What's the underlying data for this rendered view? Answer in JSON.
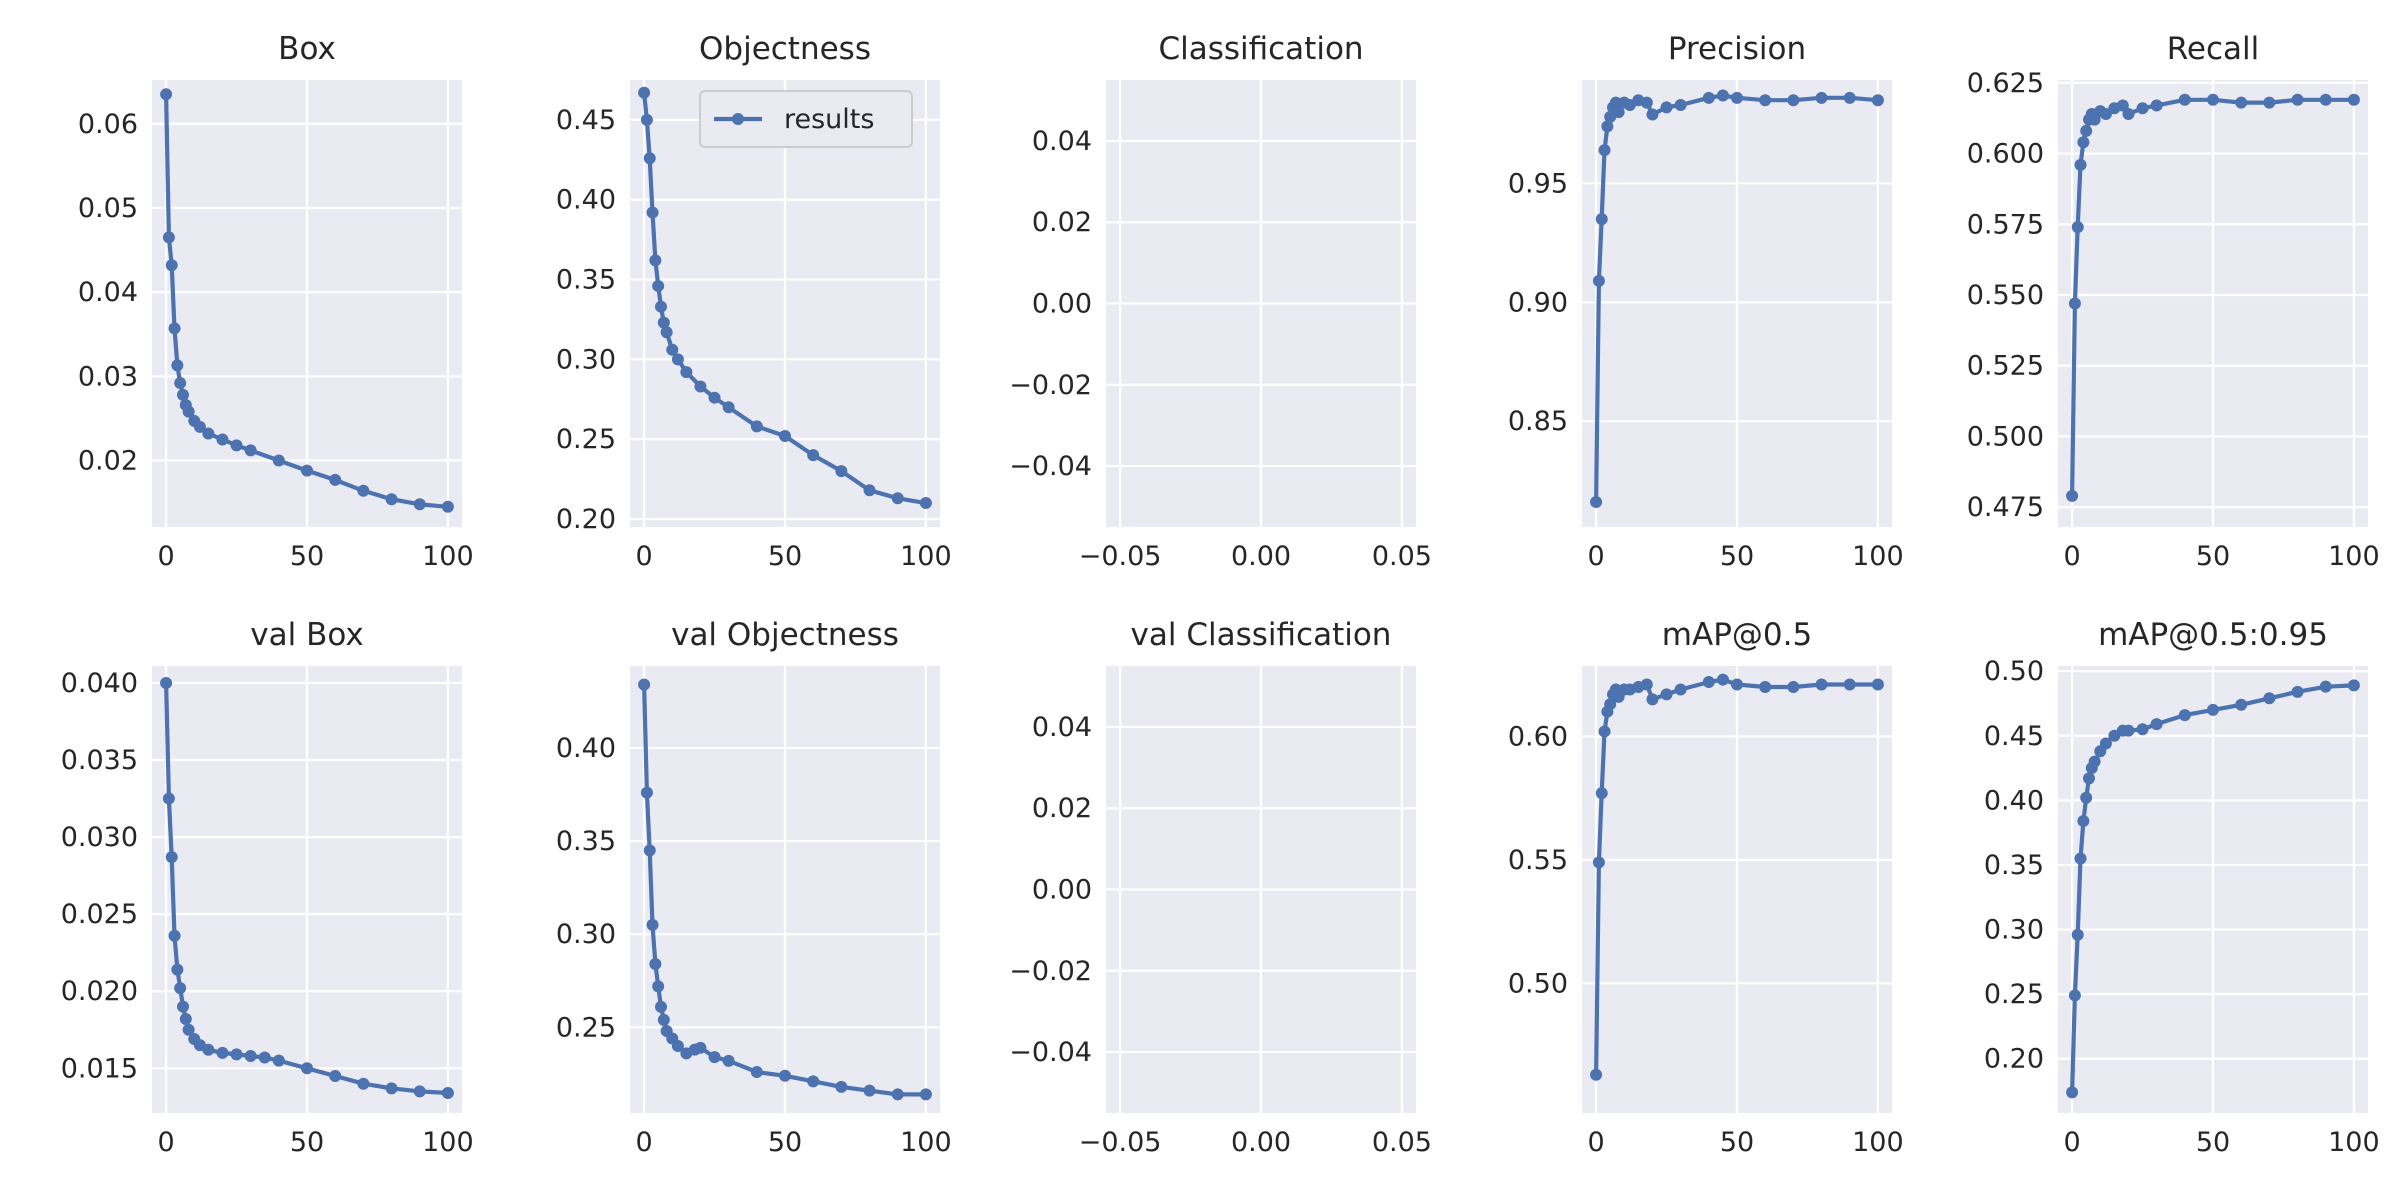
{
  "chart_data": [
    {
      "type": "line",
      "title": "Box",
      "xlim": [
        -5,
        105
      ],
      "ylim": [
        0.0121,
        0.0652
      ],
      "xticks": [
        0,
        50,
        100
      ],
      "xtick_labels": [
        "0",
        "50",
        "100"
      ],
      "yticks": [
        0.02,
        0.03,
        0.04,
        0.05,
        0.06
      ],
      "ytick_labels": [
        "0.02",
        "0.03",
        "0.04",
        "0.05",
        "0.06"
      ],
      "grid": true,
      "series": [
        {
          "name": "results",
          "x": [
            0,
            1,
            2,
            3,
            4,
            5,
            6,
            7,
            8,
            10,
            12,
            15,
            20,
            25,
            30,
            40,
            50,
            60,
            70,
            80,
            90,
            100
          ],
          "y": [
            0.0635,
            0.0465,
            0.0432,
            0.0357,
            0.0313,
            0.0292,
            0.0278,
            0.0266,
            0.0258,
            0.0247,
            0.024,
            0.0232,
            0.0225,
            0.0218,
            0.0212,
            0.02,
            0.0188,
            0.0177,
            0.0164,
            0.0154,
            0.0148,
            0.0145
          ]
        }
      ]
    },
    {
      "type": "line",
      "title": "Objectness",
      "xlim": [
        -5,
        105
      ],
      "ylim": [
        0.195,
        0.475
      ],
      "xticks": [
        0,
        50,
        100
      ],
      "xtick_labels": [
        "0",
        "50",
        "100"
      ],
      "yticks": [
        0.2,
        0.25,
        0.3,
        0.35,
        0.4,
        0.45
      ],
      "ytick_labels": [
        "0.20",
        "0.25",
        "0.30",
        "0.35",
        "0.40",
        "0.45"
      ],
      "grid": true,
      "legend": {
        "position": "top-right",
        "entries": [
          "results"
        ]
      },
      "series": [
        {
          "name": "results",
          "x": [
            0,
            1,
            2,
            3,
            4,
            5,
            6,
            7,
            8,
            10,
            12,
            15,
            20,
            25,
            30,
            40,
            50,
            60,
            70,
            80,
            90,
            100
          ],
          "y": [
            0.467,
            0.45,
            0.426,
            0.392,
            0.362,
            0.346,
            0.333,
            0.323,
            0.317,
            0.306,
            0.3,
            0.292,
            0.283,
            0.276,
            0.27,
            0.258,
            0.252,
            0.24,
            0.23,
            0.218,
            0.213,
            0.21
          ]
        }
      ]
    },
    {
      "type": "line",
      "title": "Classification",
      "xlim": [
        -0.055,
        0.055
      ],
      "ylim": [
        -0.055,
        0.055
      ],
      "xticks": [
        -0.05,
        0.0,
        0.05
      ],
      "xtick_labels": [
        "−0.05",
        "0.00",
        "0.05"
      ],
      "yticks": [
        -0.04,
        -0.02,
        0.0,
        0.02,
        0.04
      ],
      "ytick_labels": [
        "−0.04",
        "−0.02",
        "0.00",
        "0.02",
        "0.04"
      ],
      "grid": true,
      "series": [
        {
          "name": "results",
          "x": [],
          "y": []
        }
      ]
    },
    {
      "type": "line",
      "title": "Precision",
      "xlim": [
        -5,
        105
      ],
      "ylim": [
        0.8055,
        0.9935
      ],
      "xticks": [
        0,
        50,
        100
      ],
      "xtick_labels": [
        "0",
        "50",
        "100"
      ],
      "yticks": [
        0.85,
        0.9,
        0.95
      ],
      "ytick_labels": [
        "0.85",
        "0.90",
        "0.95"
      ],
      "grid": true,
      "series": [
        {
          "name": "results",
          "x": [
            0,
            1,
            2,
            3,
            4,
            5,
            6,
            7,
            8,
            10,
            12,
            15,
            18,
            20,
            25,
            30,
            40,
            45,
            50,
            60,
            70,
            80,
            90,
            100
          ],
          "y": [
            0.816,
            0.909,
            0.935,
            0.964,
            0.974,
            0.978,
            0.982,
            0.984,
            0.98,
            0.984,
            0.983,
            0.985,
            0.984,
            0.979,
            0.982,
            0.983,
            0.986,
            0.987,
            0.986,
            0.985,
            0.985,
            0.986,
            0.986,
            0.985
          ]
        }
      ]
    },
    {
      "type": "line",
      "title": "Recall",
      "xlim": [
        -5,
        105
      ],
      "ylim": [
        0.468,
        0.626
      ],
      "xticks": [
        0,
        50,
        100
      ],
      "xtick_labels": [
        "0",
        "50",
        "100"
      ],
      "yticks": [
        0.475,
        0.5,
        0.525,
        0.55,
        0.575,
        0.6,
        0.625
      ],
      "ytick_labels": [
        "0.475",
        "0.500",
        "0.525",
        "0.550",
        "0.575",
        "0.600",
        "0.625"
      ],
      "grid": true,
      "series": [
        {
          "name": "results",
          "x": [
            0,
            1,
            2,
            3,
            4,
            5,
            6,
            7,
            8,
            10,
            12,
            15,
            18,
            20,
            25,
            30,
            40,
            50,
            60,
            70,
            80,
            90,
            100
          ],
          "y": [
            0.479,
            0.547,
            0.574,
            0.596,
            0.604,
            0.608,
            0.612,
            0.614,
            0.612,
            0.615,
            0.614,
            0.616,
            0.617,
            0.614,
            0.616,
            0.617,
            0.619,
            0.619,
            0.618,
            0.618,
            0.619,
            0.619,
            0.619
          ]
        }
      ]
    },
    {
      "type": "line",
      "title": "val Box",
      "xlim": [
        -5,
        105
      ],
      "ylim": [
        0.0121,
        0.0411
      ],
      "xticks": [
        0,
        50,
        100
      ],
      "xtick_labels": [
        "0",
        "50",
        "100"
      ],
      "yticks": [
        0.015,
        0.02,
        0.025,
        0.03,
        0.035,
        0.04
      ],
      "ytick_labels": [
        "0.015",
        "0.020",
        "0.025",
        "0.030",
        "0.035",
        "0.040"
      ],
      "grid": true,
      "series": [
        {
          "name": "results",
          "x": [
            0,
            1,
            2,
            3,
            4,
            5,
            6,
            7,
            8,
            10,
            12,
            15,
            20,
            25,
            30,
            35,
            40,
            50,
            60,
            70,
            80,
            90,
            100
          ],
          "y": [
            0.04,
            0.0325,
            0.0287,
            0.0236,
            0.0214,
            0.0202,
            0.019,
            0.0182,
            0.0175,
            0.0169,
            0.0165,
            0.0162,
            0.016,
            0.0159,
            0.0158,
            0.0157,
            0.0155,
            0.015,
            0.0145,
            0.014,
            0.0137,
            0.0135,
            0.0134
          ]
        }
      ]
    },
    {
      "type": "line",
      "title": "val Objectness",
      "xlim": [
        -5,
        105
      ],
      "ylim": [
        0.204,
        0.444
      ],
      "xticks": [
        0,
        50,
        100
      ],
      "xtick_labels": [
        "0",
        "50",
        "100"
      ],
      "yticks": [
        0.25,
        0.3,
        0.35,
        0.4
      ],
      "ytick_labels": [
        "0.25",
        "0.30",
        "0.35",
        "0.40"
      ],
      "grid": true,
      "series": [
        {
          "name": "results",
          "x": [
            0,
            1,
            2,
            3,
            4,
            5,
            6,
            7,
            8,
            10,
            12,
            15,
            18,
            20,
            25,
            30,
            40,
            50,
            60,
            70,
            80,
            90,
            100
          ],
          "y": [
            0.434,
            0.376,
            0.345,
            0.305,
            0.284,
            0.272,
            0.261,
            0.254,
            0.248,
            0.244,
            0.24,
            0.236,
            0.238,
            0.239,
            0.234,
            0.232,
            0.226,
            0.224,
            0.221,
            0.218,
            0.216,
            0.214,
            0.214
          ]
        }
      ]
    },
    {
      "type": "line",
      "title": "val Classification",
      "xlim": [
        -0.055,
        0.055
      ],
      "ylim": [
        -0.055,
        0.055
      ],
      "xticks": [
        -0.05,
        0.0,
        0.05
      ],
      "xtick_labels": [
        "−0.05",
        "0.00",
        "0.05"
      ],
      "yticks": [
        -0.04,
        -0.02,
        0.0,
        0.02,
        0.04
      ],
      "ytick_labels": [
        "−0.04",
        "−0.02",
        "0.00",
        "0.02",
        "0.04"
      ],
      "grid": true,
      "series": [
        {
          "name": "results",
          "x": [],
          "y": []
        }
      ]
    },
    {
      "type": "line",
      "title": "mAP@0.5",
      "xlim": [
        -5,
        105
      ],
      "ylim": [
        0.4475,
        0.6285
      ],
      "xticks": [
        0,
        50,
        100
      ],
      "xtick_labels": [
        "0",
        "50",
        "100"
      ],
      "yticks": [
        0.5,
        0.55,
        0.6
      ],
      "ytick_labels": [
        "0.50",
        "0.55",
        "0.60"
      ],
      "grid": true,
      "series": [
        {
          "name": "results",
          "x": [
            0,
            1,
            2,
            3,
            4,
            5,
            6,
            7,
            8,
            10,
            12,
            15,
            18,
            20,
            25,
            30,
            40,
            45,
            50,
            60,
            70,
            80,
            90,
            100
          ],
          "y": [
            0.463,
            0.549,
            0.577,
            0.602,
            0.61,
            0.613,
            0.617,
            0.619,
            0.616,
            0.619,
            0.619,
            0.62,
            0.621,
            0.615,
            0.617,
            0.619,
            0.622,
            0.623,
            0.621,
            0.62,
            0.62,
            0.621,
            0.621,
            0.621
          ]
        }
      ]
    },
    {
      "type": "line",
      "title": "mAP@0.5:0.95",
      "xlim": [
        -5,
        105
      ],
      "ylim": [
        0.158,
        0.504
      ],
      "xticks": [
        0,
        50,
        100
      ],
      "xtick_labels": [
        "0",
        "50",
        "100"
      ],
      "yticks": [
        0.2,
        0.25,
        0.3,
        0.35,
        0.4,
        0.45,
        0.5
      ],
      "ytick_labels": [
        "0.20",
        "0.25",
        "0.30",
        "0.35",
        "0.40",
        "0.45",
        "0.50"
      ],
      "grid": true,
      "series": [
        {
          "name": "results",
          "x": [
            0,
            1,
            2,
            3,
            4,
            5,
            6,
            7,
            8,
            10,
            12,
            15,
            18,
            20,
            25,
            30,
            40,
            50,
            60,
            70,
            80,
            90,
            100
          ],
          "y": [
            0.174,
            0.249,
            0.296,
            0.355,
            0.384,
            0.402,
            0.417,
            0.425,
            0.43,
            0.438,
            0.444,
            0.45,
            0.454,
            0.454,
            0.455,
            0.459,
            0.466,
            0.47,
            0.474,
            0.479,
            0.484,
            0.488,
            0.489
          ]
        }
      ]
    }
  ],
  "style": {
    "line_color": "#4c72b0",
    "axes_background": "#eaeaf2",
    "grid_color": "#ffffff"
  }
}
